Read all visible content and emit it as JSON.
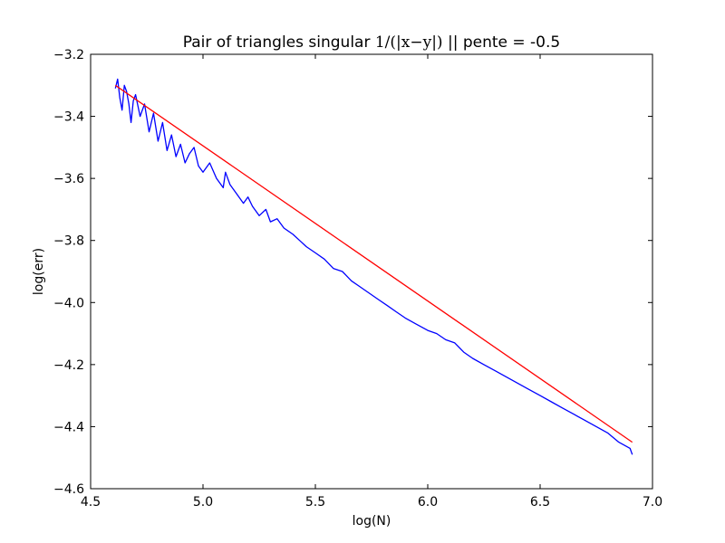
{
  "chart_data": {
    "type": "line",
    "title_parts": {
      "prefix": "Pair of triangles singular ",
      "math": "1/(|x−y|)",
      "suffix": " || pente = -0.5"
    },
    "xlabel": "log(N)",
    "ylabel": "log(err)",
    "xlim": [
      4.5,
      7.0
    ],
    "ylim": [
      -4.6,
      -3.2
    ],
    "xticks": [
      4.5,
      5.0,
      5.5,
      6.0,
      6.5,
      7.0
    ],
    "xtick_labels": [
      "4.5",
      "5.0",
      "5.5",
      "6.0",
      "6.5",
      "7.0"
    ],
    "yticks": [
      -4.6,
      -4.4,
      -4.2,
      -4.0,
      -3.8,
      -3.6,
      -3.4,
      -3.2
    ],
    "ytick_labels": [
      "−4.6",
      "−4.4",
      "−4.2",
      "−4.0",
      "−3.8",
      "−3.6",
      "−3.4",
      "−3.2"
    ],
    "grid": false,
    "legend": "none",
    "series": [
      {
        "color": "#0000ff",
        "x": [
          4.61,
          4.62,
          4.63,
          4.64,
          4.65,
          4.66,
          4.67,
          4.68,
          4.69,
          4.7,
          4.72,
          4.74,
          4.76,
          4.78,
          4.8,
          4.82,
          4.84,
          4.86,
          4.88,
          4.9,
          4.92,
          4.94,
          4.96,
          4.98,
          5.0,
          5.03,
          5.06,
          5.09,
          5.1,
          5.12,
          5.15,
          5.18,
          5.2,
          5.22,
          5.25,
          5.28,
          5.3,
          5.33,
          5.36,
          5.4,
          5.43,
          5.46,
          5.5,
          5.54,
          5.58,
          5.62,
          5.66,
          5.7,
          5.74,
          5.78,
          5.82,
          5.86,
          5.9,
          5.95,
          6.0,
          6.04,
          6.08,
          6.12,
          6.16,
          6.2,
          6.25,
          6.3,
          6.35,
          6.4,
          6.45,
          6.5,
          6.55,
          6.6,
          6.65,
          6.7,
          6.75,
          6.8,
          6.85,
          6.9,
          6.91
        ],
        "y": [
          -3.31,
          -3.28,
          -3.34,
          -3.38,
          -3.3,
          -3.32,
          -3.36,
          -3.42,
          -3.35,
          -3.33,
          -3.4,
          -3.36,
          -3.45,
          -3.39,
          -3.48,
          -3.42,
          -3.51,
          -3.46,
          -3.53,
          -3.49,
          -3.55,
          -3.52,
          -3.5,
          -3.56,
          -3.58,
          -3.55,
          -3.6,
          -3.63,
          -3.58,
          -3.62,
          -3.65,
          -3.68,
          -3.66,
          -3.69,
          -3.72,
          -3.7,
          -3.74,
          -3.73,
          -3.76,
          -3.78,
          -3.8,
          -3.82,
          -3.84,
          -3.86,
          -3.89,
          -3.9,
          -3.93,
          -3.95,
          -3.97,
          -3.99,
          -4.01,
          -4.03,
          -4.05,
          -4.07,
          -4.09,
          -4.1,
          -4.12,
          -4.13,
          -4.16,
          -4.18,
          -4.2,
          -4.22,
          -4.24,
          -4.26,
          -4.28,
          -4.3,
          -4.32,
          -4.34,
          -4.36,
          -4.38,
          -4.4,
          -4.42,
          -4.45,
          -4.47,
          -4.49
        ]
      },
      {
        "color": "#ff0000",
        "x": [
          4.61,
          6.91
        ],
        "y": [
          -3.3,
          -4.45
        ]
      }
    ]
  }
}
